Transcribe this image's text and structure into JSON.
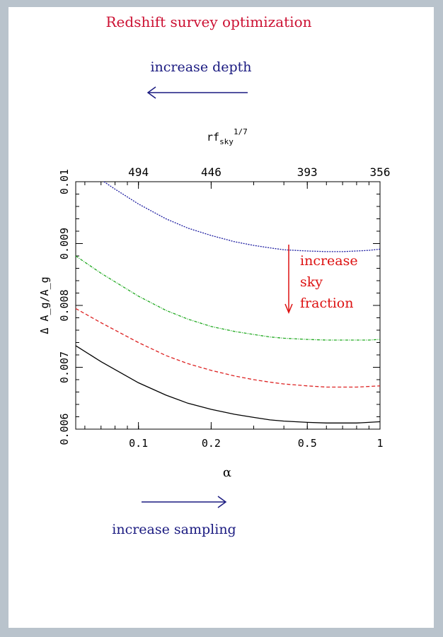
{
  "title": "Redshift survey optimization",
  "top_caption": "increase depth",
  "bottom_caption": "increase sampling",
  "annotation": [
    "increase",
    "sky",
    "fraction"
  ],
  "colors": {
    "title": "#cc1133",
    "caption": "#1a1a80",
    "annotation": "#dd1111",
    "arrow_blue": "#1a1a80",
    "arrow_red": "#dd1111"
  },
  "chart_data": {
    "type": "line",
    "title": "",
    "xlabel": "α",
    "ylabel": "Δ A_g/A_g",
    "x_scale": "log",
    "xlim": [
      0.055,
      1.0
    ],
    "ylim": [
      0.006,
      0.01
    ],
    "x_ticks": [
      {
        "value": 0.1,
        "label": "0.1"
      },
      {
        "value": 0.2,
        "label": "0.2"
      },
      {
        "value": 0.5,
        "label": "0.5"
      },
      {
        "value": 1,
        "label": "1"
      }
    ],
    "y_ticks": [
      {
        "value": 0.006,
        "label": "0.006"
      },
      {
        "value": 0.007,
        "label": "0.007"
      },
      {
        "value": 0.008,
        "label": "0.008"
      },
      {
        "value": 0.009,
        "label": "0.009"
      },
      {
        "value": 0.01,
        "label": "0.01"
      }
    ],
    "top_axis": {
      "label_base": "rf",
      "label_sub": "sky",
      "label_sup": "1/7",
      "ticks": [
        {
          "alpha": 0.1,
          "label": "494"
        },
        {
          "alpha": 0.2,
          "label": "446"
        },
        {
          "alpha": 0.5,
          "label": "393"
        },
        {
          "alpha": 1.0,
          "label": "356"
        }
      ]
    },
    "grid": false,
    "legend": "none",
    "series": [
      {
        "color": "#1a1aa0",
        "dash": "2,1.5",
        "x": [
          0.072,
          0.08,
          0.1,
          0.13,
          0.16,
          0.2,
          0.25,
          0.3,
          0.35,
          0.4,
          0.5,
          0.6,
          0.7,
          0.8,
          0.9,
          1.0
        ],
        "y": [
          0.01,
          0.00988,
          0.00964,
          0.0094,
          0.00925,
          0.00913,
          0.00903,
          0.00897,
          0.00893,
          0.0089,
          0.00888,
          0.00887,
          0.00887,
          0.00888,
          0.00889,
          0.00891
        ]
      },
      {
        "color": "#22aa22",
        "dash": "4,1.5,1,1.5",
        "x": [
          0.055,
          0.07,
          0.1,
          0.13,
          0.16,
          0.2,
          0.25,
          0.3,
          0.35,
          0.4,
          0.5,
          0.6,
          0.7,
          0.8,
          0.9,
          1.0
        ],
        "y": [
          0.0088,
          0.00852,
          0.00815,
          0.00792,
          0.00778,
          0.00766,
          0.00758,
          0.00753,
          0.00749,
          0.00747,
          0.00745,
          0.00744,
          0.00744,
          0.00744,
          0.00744,
          0.00745
        ]
      },
      {
        "color": "#dd2222",
        "dash": "5,3",
        "x": [
          0.055,
          0.07,
          0.1,
          0.13,
          0.16,
          0.2,
          0.25,
          0.3,
          0.35,
          0.4,
          0.5,
          0.6,
          0.7,
          0.8,
          0.9,
          1.0
        ],
        "y": [
          0.00795,
          0.00772,
          0.0074,
          0.00719,
          0.00706,
          0.00695,
          0.00686,
          0.0068,
          0.00676,
          0.00673,
          0.0067,
          0.00668,
          0.00668,
          0.00668,
          0.00669,
          0.0067
        ]
      },
      {
        "color": "#000000",
        "dash": "",
        "x": [
          0.055,
          0.07,
          0.1,
          0.13,
          0.16,
          0.2,
          0.25,
          0.3,
          0.35,
          0.4,
          0.5,
          0.6,
          0.7,
          0.8,
          0.9,
          1.0
        ],
        "y": [
          0.00735,
          0.00709,
          0.00675,
          0.00655,
          0.00642,
          0.00632,
          0.00624,
          0.00619,
          0.00615,
          0.00613,
          0.00611,
          0.0061,
          0.0061,
          0.0061,
          0.00611,
          0.00612
        ]
      }
    ]
  }
}
